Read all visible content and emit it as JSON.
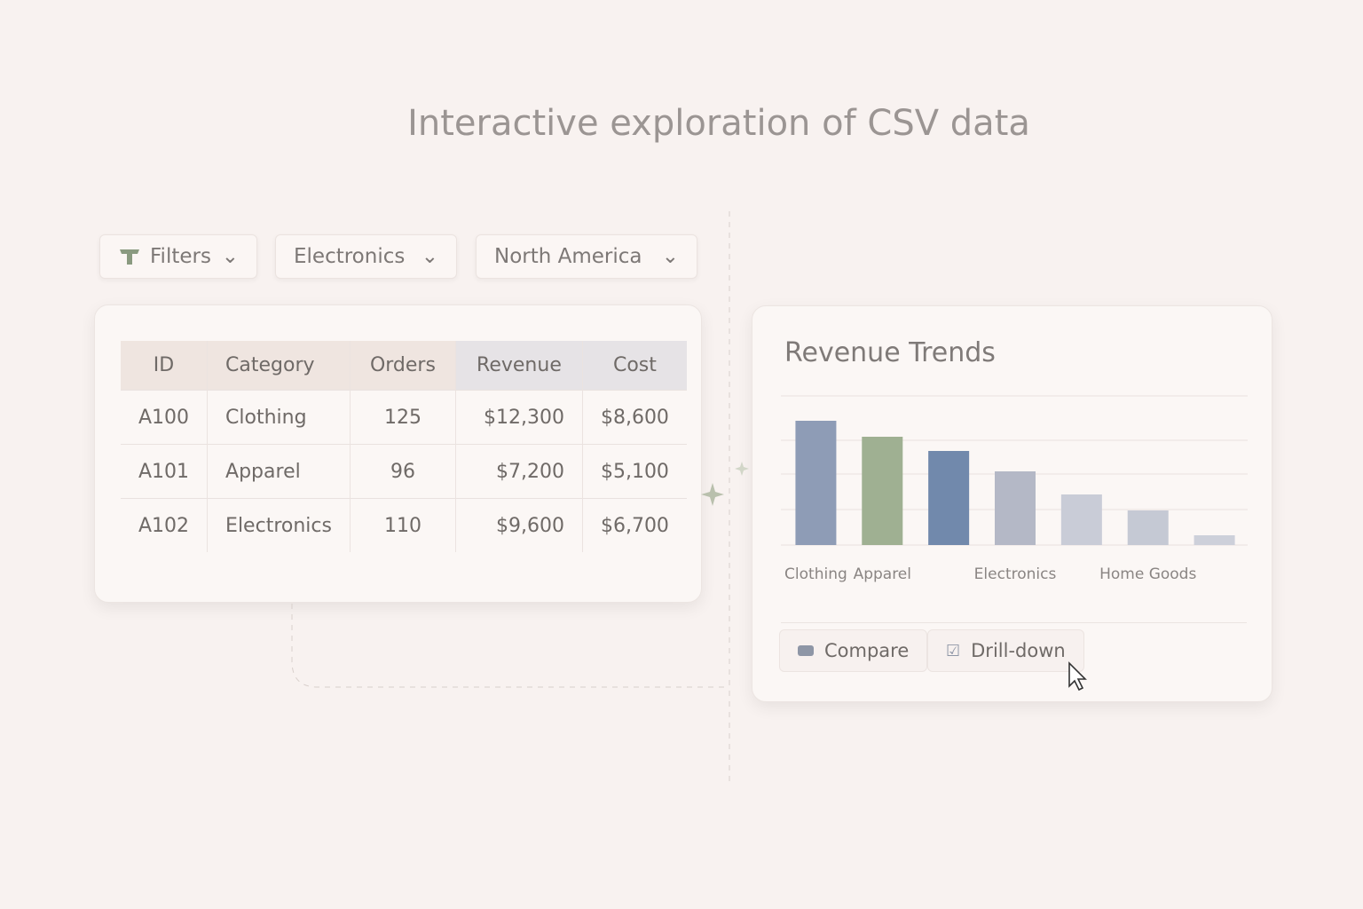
{
  "header": {
    "title": "Interactive exploration of CSV data"
  },
  "filters": [
    "Filters",
    "Electronics",
    "North America"
  ],
  "table": {
    "columns": [
      "ID",
      "Category",
      "Orders",
      "Revenue",
      "Cost"
    ],
    "rows": [
      [
        "A100",
        "Clothing",
        "125",
        "$12,300",
        "$8,600"
      ],
      [
        "A101",
        "Apparel",
        "96",
        "$7,200",
        "$5,100"
      ],
      [
        "A102",
        "Electronics",
        "110",
        "$9,600",
        "$6,700"
      ]
    ]
  },
  "chart_data": {
    "type": "bar",
    "title": "Revenue Trends",
    "categories": [
      "Clothing",
      "Apparel",
      null,
      "Electronics",
      null,
      "Home Goods",
      null
    ],
    "values": [
      140,
      122,
      106,
      83,
      57,
      39,
      11
    ],
    "colors": [
      "#8e9cb6",
      "#9fb092",
      "#7189ac",
      "#b4b8c6",
      "#c9ccd7",
      "#c5c9d4",
      "#cdd0da"
    ],
    "ylim": [
      0,
      168
    ],
    "yticks": [
      0,
      40,
      80,
      118,
      168
    ],
    "grid": true
  },
  "actions": [
    "Compare",
    "Drill-down"
  ]
}
